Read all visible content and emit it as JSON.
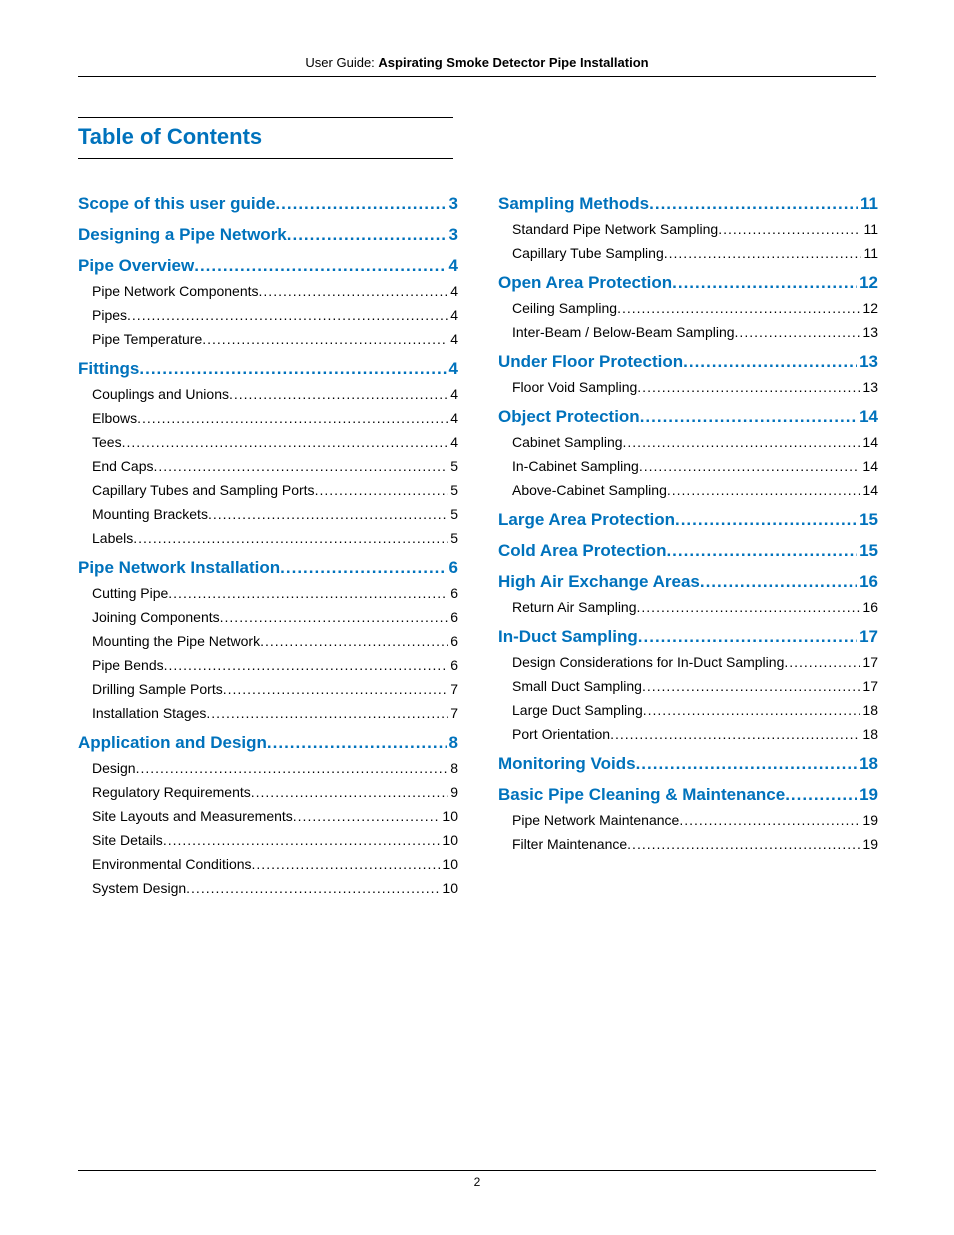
{
  "header": {
    "prefix": "User Guide: ",
    "title": "Aspirating Smoke Detector Pipe Installation"
  },
  "toc_title": "Table of Contents",
  "page_number": "2",
  "colors": {
    "accent": "#0072bc",
    "text": "#000000",
    "rule": "#000000",
    "background": "#ffffff"
  },
  "columns": [
    [
      {
        "level": 1,
        "label": "Scope of this user guide",
        "page": "3"
      },
      {
        "level": 1,
        "label": "Designing a Pipe Network",
        "page": "3"
      },
      {
        "level": 1,
        "label": "Pipe Overview",
        "page": "4"
      },
      {
        "level": 2,
        "label": "Pipe Network Components",
        "page": "4"
      },
      {
        "level": 2,
        "label": "Pipes",
        "page": "4"
      },
      {
        "level": 2,
        "label": "Pipe Temperature",
        "page": "4"
      },
      {
        "level": 1,
        "label": "Fittings",
        "page": "4"
      },
      {
        "level": 2,
        "label": "Couplings and Unions",
        "page": "4"
      },
      {
        "level": 2,
        "label": "Elbows",
        "page": "4"
      },
      {
        "level": 2,
        "label": "Tees",
        "page": "4"
      },
      {
        "level": 2,
        "label": "End Caps",
        "page": "5"
      },
      {
        "level": 2,
        "label": "Capillary Tubes and Sampling Ports",
        "page": "5"
      },
      {
        "level": 2,
        "label": "Mounting Brackets",
        "page": "5"
      },
      {
        "level": 2,
        "label": "Labels",
        "page": "5"
      },
      {
        "level": 1,
        "label": "Pipe Network Installation",
        "page": "6"
      },
      {
        "level": 2,
        "label": "Cutting Pipe",
        "page": "6"
      },
      {
        "level": 2,
        "label": "Joining Components",
        "page": "6"
      },
      {
        "level": 2,
        "label": "Mounting the Pipe Network",
        "page": "6"
      },
      {
        "level": 2,
        "label": "Pipe Bends",
        "page": "6"
      },
      {
        "level": 2,
        "label": "Drilling Sample Ports",
        "page": "7"
      },
      {
        "level": 2,
        "label": "Installation Stages",
        "page": "7"
      },
      {
        "level": 1,
        "label": "Application and Design",
        "page": "8"
      },
      {
        "level": 2,
        "label": "Design",
        "page": "8"
      },
      {
        "level": 2,
        "label": "Regulatory Requirements",
        "page": "9"
      },
      {
        "level": 2,
        "label": "Site Layouts and Measurements",
        "page": "10"
      },
      {
        "level": 2,
        "label": "Site Details",
        "page": "10"
      },
      {
        "level": 2,
        "label": "Environmental Conditions",
        "page": "10"
      },
      {
        "level": 2,
        "label": "System Design",
        "page": "10"
      }
    ],
    [
      {
        "level": 1,
        "label": "Sampling Methods",
        "page": "11"
      },
      {
        "level": 2,
        "label": "Standard Pipe Network Sampling",
        "page": "11"
      },
      {
        "level": 2,
        "label": "Capillary Tube Sampling",
        "page": "11"
      },
      {
        "level": 1,
        "label": "Open Area Protection",
        "page": "12"
      },
      {
        "level": 2,
        "label": "Ceiling Sampling",
        "page": "12"
      },
      {
        "level": 2,
        "label": "Inter-Beam / Below-Beam Sampling",
        "page": "13"
      },
      {
        "level": 1,
        "label": "Under Floor Protection",
        "page": "13"
      },
      {
        "level": 2,
        "label": "Floor Void Sampling",
        "page": "13"
      },
      {
        "level": 1,
        "label": "Object Protection",
        "page": "14"
      },
      {
        "level": 2,
        "label": "Cabinet Sampling",
        "page": "14"
      },
      {
        "level": 2,
        "label": "In-Cabinet Sampling",
        "page": "14"
      },
      {
        "level": 2,
        "label": "Above-Cabinet Sampling",
        "page": "14"
      },
      {
        "level": 1,
        "label": "Large Area Protection",
        "page": "15"
      },
      {
        "level": 1,
        "label": "Cold Area Protection",
        "page": "15"
      },
      {
        "level": 1,
        "label": "High Air Exchange Areas",
        "page": "16"
      },
      {
        "level": 2,
        "label": "Return Air Sampling",
        "page": "16"
      },
      {
        "level": 1,
        "label": "In-Duct Sampling",
        "page": "17"
      },
      {
        "level": 2,
        "label": "Design Considerations for In-Duct Sampling",
        "page": "17"
      },
      {
        "level": 2,
        "label": "Small Duct Sampling",
        "page": "17"
      },
      {
        "level": 2,
        "label": "Large Duct Sampling",
        "page": "18"
      },
      {
        "level": 2,
        "label": "Port Orientation",
        "page": "18"
      },
      {
        "level": 1,
        "label": "Monitoring Voids",
        "page": "18"
      },
      {
        "level": 1,
        "label": "Basic Pipe Cleaning & Maintenance",
        "page": "19"
      },
      {
        "level": 2,
        "label": "Pipe Network Maintenance",
        "page": "19"
      },
      {
        "level": 2,
        "label": "Filter Maintenance",
        "page": "19"
      }
    ]
  ]
}
